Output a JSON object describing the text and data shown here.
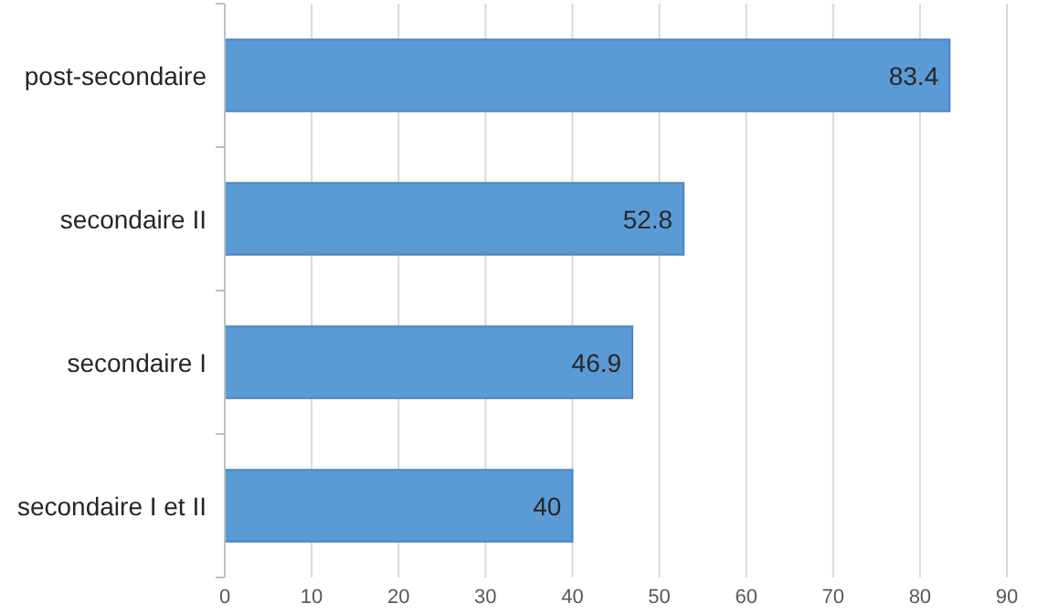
{
  "chart_data": {
    "type": "bar",
    "orientation": "horizontal",
    "categories": [
      "post-secondaire",
      "secondaire II",
      "secondaire I",
      "secondaire I et II"
    ],
    "values": [
      83.4,
      52.8,
      46.9,
      40
    ],
    "color": "#5b9bd5",
    "xlim": [
      0,
      90
    ],
    "xticks": [
      0,
      10,
      20,
      30,
      40,
      50,
      60,
      70,
      80,
      90
    ],
    "grid": "x",
    "data_labels": true
  }
}
